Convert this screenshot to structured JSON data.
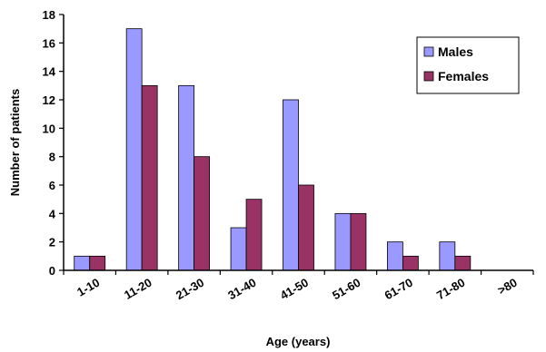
{
  "chart_data": {
    "type": "bar",
    "title": "",
    "xlabel": "Age (years)",
    "ylabel": "Number of patients",
    "categories": [
      "1-10",
      "11-20",
      "21-30",
      "31-40",
      "41-50",
      "51-60",
      "61-70",
      "71-80",
      ">80"
    ],
    "series": [
      {
        "name": "Males",
        "values": [
          1,
          17,
          13,
          3,
          12,
          4,
          2,
          2,
          0
        ],
        "color": "#9999ff"
      },
      {
        "name": "Females",
        "values": [
          1,
          13,
          8,
          5,
          6,
          4,
          1,
          1,
          0
        ],
        "color": "#993366"
      }
    ],
    "ylim": [
      0,
      18
    ],
    "yticks": [
      0,
      2,
      4,
      6,
      8,
      10,
      12,
      14,
      16,
      18
    ],
    "grid": false,
    "legend": "top-right"
  }
}
